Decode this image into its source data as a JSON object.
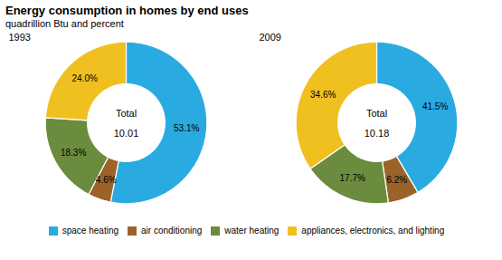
{
  "title": "Energy consumption in homes by end uses",
  "subtitle": "quadrillion Btu and percent",
  "chart_data": [
    {
      "type": "pie",
      "title": "1993",
      "categories": [
        "space heating",
        "air conditioning",
        "water heating",
        "appliances, electronics, and lighting"
      ],
      "values": [
        53.1,
        4.6,
        18.3,
        24.0
      ],
      "value_labels": [
        "53.1%",
        "4.6%",
        "18.3%",
        "24.0%"
      ],
      "colors": [
        "#29ABE2",
        "#9B6328",
        "#6B8C3E",
        "#F0C020"
      ],
      "annotations": [
        "Total",
        "10.01"
      ],
      "data_labels": true,
      "legend": "bottom"
    },
    {
      "type": "pie",
      "title": "2009",
      "categories": [
        "space heating",
        "air conditioning",
        "water heating",
        "appliances, electronics, and lighting"
      ],
      "values": [
        41.5,
        6.2,
        17.7,
        34.6
      ],
      "value_labels": [
        "41.5%",
        "6.2%",
        "17.7%",
        "34.6%"
      ],
      "colors": [
        "#29ABE2",
        "#9B6328",
        "#6B8C3E",
        "#F0C020"
      ],
      "annotations": [
        "Total",
        "10.18"
      ],
      "data_labels": true,
      "legend": "bottom"
    }
  ]
}
